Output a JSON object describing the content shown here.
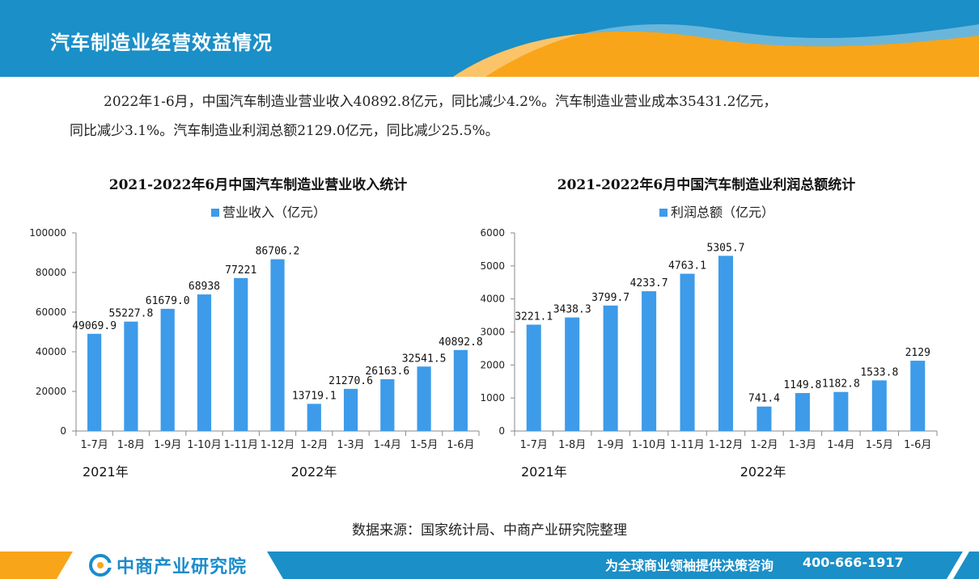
{
  "header": {
    "title": "汽车制造业经营效益情况"
  },
  "summary": {
    "line1": "2022年1-6月，中国汽车制造业营业收入40892.8亿元，同比减少4.2%。汽车制造业营业成本35431.2亿元，",
    "line2": "同比减少3.1%。汽车制造业利润总额2129.0亿元，同比减少25.5%。"
  },
  "chart_data": [
    {
      "type": "bar",
      "title": "2021-2022年6月中国汽车制造业营业收入统计",
      "categories": [
        "1-7月",
        "1-8月",
        "1-9月",
        "1-10月",
        "1-11月",
        "1-12月",
        "1-2月",
        "1-3月",
        "1-4月",
        "1-5月",
        "1-6月"
      ],
      "series": [
        {
          "name": "营业收入（亿元）",
          "values": [
            49069.9,
            55227.8,
            61679.0,
            68938,
            77221,
            86706.2,
            13719.1,
            21270.6,
            26163.6,
            32541.5,
            40892.8
          ],
          "labels": [
            "49069.9",
            "55227.8",
            "61679.0",
            "68938",
            "77221",
            "86706.2",
            "13719.1",
            "21270.6",
            "26163.6",
            "32541.5",
            "40892.8"
          ]
        }
      ],
      "yticks": [
        "0",
        "20000",
        "40000",
        "60000",
        "80000",
        "100000"
      ],
      "ylim": [
        0,
        100000
      ],
      "year_labels": [
        "2021年",
        "2022年"
      ],
      "legend_position": "top",
      "color": "#3d9be9"
    },
    {
      "type": "bar",
      "title": "2021-2022年6月中国汽车制造业利润总额统计",
      "categories": [
        "1-7月",
        "1-8月",
        "1-9月",
        "1-10月",
        "1-11月",
        "1-12月",
        "1-2月",
        "1-3月",
        "1-4月",
        "1-5月",
        "1-6月"
      ],
      "series": [
        {
          "name": "利润总额（亿元）",
          "values": [
            3221.1,
            3438.3,
            3799.7,
            4233.7,
            4763.1,
            5305.7,
            741.4,
            1149.8,
            1182.8,
            1533.8,
            2129
          ],
          "labels": [
            "3221.1",
            "3438.3",
            "3799.7",
            "4233.7",
            "4763.1",
            "5305.7",
            "741.4",
            "1149.8",
            "1182.8",
            "1533.8",
            "2129"
          ]
        }
      ],
      "yticks": [
        "0",
        "1000",
        "2000",
        "3000",
        "4000",
        "5000",
        "6000"
      ],
      "ylim": [
        0,
        6000
      ],
      "year_labels": [
        "2021年",
        "2022年"
      ],
      "legend_position": "top",
      "color": "#3d9be9"
    }
  ],
  "source": "数据来源：国家统计局、中商产业研究院整理",
  "footer": {
    "logo": "中商产业研究院",
    "slogan": "为全球商业领袖提供决策咨询",
    "phone": "400-666-1917"
  },
  "colors": {
    "header_blue": "#1b8fc7",
    "accent_orange": "#f9a51a",
    "bar": "#3d9be9"
  }
}
